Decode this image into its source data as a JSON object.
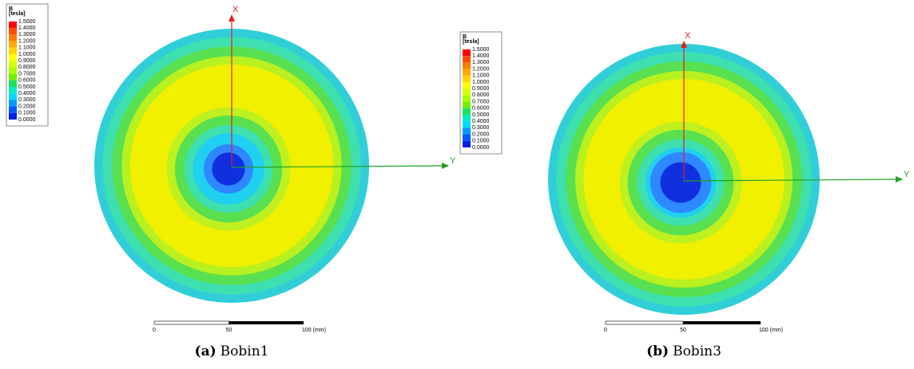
{
  "panels": [
    {
      "legend": {
        "title": "B",
        "unit": "[tesla]",
        "levels": [
          "1.5000",
          "1.4000",
          "1.3000",
          "1.2000",
          "1.1000",
          "1.0000",
          "0.9000",
          "0.8000",
          "0.7000",
          "0.6000",
          "0.5000",
          "0.4000",
          "0.3000",
          "0.2000",
          "0.1000",
          "0.0000"
        ],
        "colors": [
          "#ff0000",
          "#ff4a00",
          "#ff7a00",
          "#ffa800",
          "#ffd400",
          "#ffff00",
          "#d4ff00",
          "#a8ff00",
          "#6cf000",
          "#20e060",
          "#00f0c0",
          "#00d8ff",
          "#0098ff",
          "#0058ff",
          "#0020e8",
          "#0000b8"
        ]
      },
      "axes": {
        "x": "X",
        "y": "Y"
      },
      "scalebar": {
        "start": "0",
        "mid": "50",
        "end": "100 (mm)"
      },
      "caption": {
        "label": "(a)",
        "text": "Bobin1"
      }
    },
    {
      "legend": {
        "title": "B",
        "unit": "[tesla]",
        "levels": [
          "1.5000",
          "1.4000",
          "1.3000",
          "1.2000",
          "1.1000",
          "1.0000",
          "0.9000",
          "0.8000",
          "0.7000",
          "0.6000",
          "0.5000",
          "0.4000",
          "0.3000",
          "0.2000",
          "0.1000",
          "0.0000"
        ],
        "colors": [
          "#ff0000",
          "#ff4a00",
          "#ff7a00",
          "#ffa800",
          "#ffd400",
          "#ffff00",
          "#d4ff00",
          "#a8ff00",
          "#6cf000",
          "#20e060",
          "#00f0c0",
          "#00d8ff",
          "#0098ff",
          "#0058ff",
          "#0020e8",
          "#0000b8"
        ]
      },
      "axes": {
        "x": "X",
        "y": "Y"
      },
      "scalebar": {
        "start": "0",
        "mid": "50",
        "end": "100 (mm)"
      },
      "caption": {
        "label": "(b)",
        "text": "Bobin3"
      }
    }
  ]
}
